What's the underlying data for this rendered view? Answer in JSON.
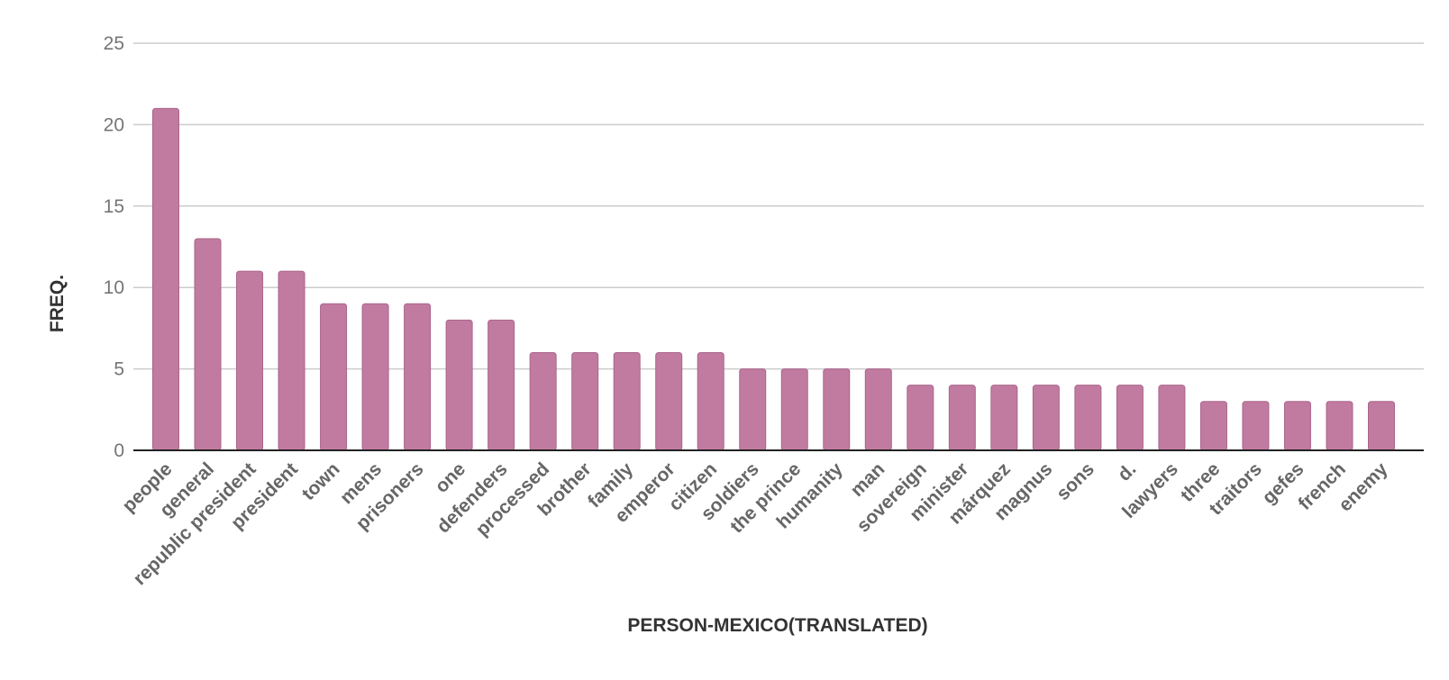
{
  "colors": {
    "bar": "#c27ba0",
    "bar_outline": "#a9658a",
    "grid": "#cccccc",
    "axis": "#222222"
  },
  "chart_data": {
    "type": "bar",
    "title": "",
    "xlabel": "PERSON-MEXICO(TRANSLATED)",
    "ylabel": "FREQ.",
    "ylim": [
      0,
      25
    ],
    "yticks": [
      0,
      5,
      10,
      15,
      20,
      25
    ],
    "grid": true,
    "legend": "none",
    "categories": [
      "people",
      "general",
      "republic president",
      "president",
      "town",
      "mens",
      "prisoners",
      "one",
      "defenders",
      "processed",
      "brother",
      "family",
      "emperor",
      "citizen",
      "soldiers",
      "the prince",
      "humanity",
      "man",
      "sovereign",
      "minister",
      "márquez",
      "magnus",
      "sons",
      "d.",
      "lawyers",
      "three",
      "traitors",
      "gefes",
      "french",
      "enemy"
    ],
    "values": [
      21,
      13,
      11,
      11,
      9,
      9,
      9,
      8,
      8,
      6,
      6,
      6,
      6,
      6,
      5,
      5,
      5,
      5,
      4,
      4,
      4,
      4,
      4,
      4,
      4,
      3,
      3,
      3,
      3,
      3
    ]
  }
}
